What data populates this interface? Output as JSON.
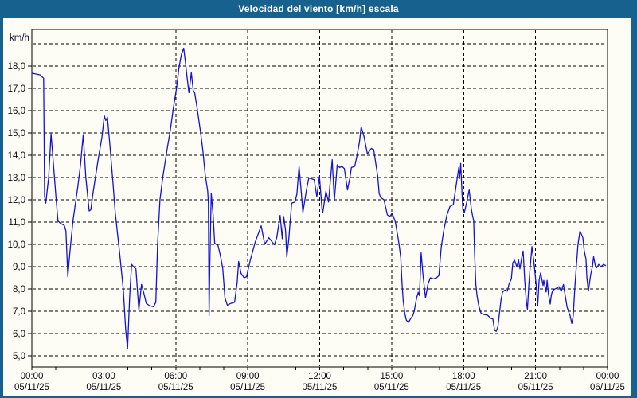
{
  "window": {
    "title": "Velocidad del viento [km/h] escala"
  },
  "colors": {
    "frame": "#17618F",
    "title_text": "#FFFFFF",
    "content_bg": "#FDFDF6",
    "line": "#1212D6",
    "grid": "#000000",
    "axis_text": "#0A0A14"
  },
  "chart_data": {
    "type": "line",
    "title": "Velocidad del viento [km/h] escala",
    "ylabel": "km/h",
    "xlabel": "",
    "x_unit": "hours",
    "xlim": [
      0,
      24
    ],
    "ylim": [
      4.5,
      19.64
    ],
    "grid": "dashed",
    "legend_position": "none",
    "y_grid_values": [
      5,
      6,
      7,
      8,
      9,
      10,
      11,
      12,
      13,
      14,
      15,
      16,
      17,
      18,
      19
    ],
    "y_ticks": [
      {
        "v": 5,
        "label": "5,0"
      },
      {
        "v": 6,
        "label": "6,0"
      },
      {
        "v": 7,
        "label": "7,0"
      },
      {
        "v": 8,
        "label": "8,0"
      },
      {
        "v": 9,
        "label": "9,0"
      },
      {
        "v": 10,
        "label": "10,0"
      },
      {
        "v": 11,
        "label": "11,0"
      },
      {
        "v": 12,
        "label": "12,0"
      },
      {
        "v": 13,
        "label": "13,0"
      },
      {
        "v": 14,
        "label": "14,0"
      },
      {
        "v": 15,
        "label": "15,0"
      },
      {
        "v": 16,
        "label": "16,0"
      },
      {
        "v": 17,
        "label": "17,0"
      },
      {
        "v": 18,
        "label": "18,0"
      }
    ],
    "x_ticks": [
      {
        "h": 0,
        "time": "00:00",
        "date": "05/11/25"
      },
      {
        "h": 3,
        "time": "03:00",
        "date": "05/11/25"
      },
      {
        "h": 6,
        "time": "06:00",
        "date": "05/11/25"
      },
      {
        "h": 9,
        "time": "09:00",
        "date": "05/11/25"
      },
      {
        "h": 12,
        "time": "12:00",
        "date": "05/11/25"
      },
      {
        "h": 15,
        "time": "15:00",
        "date": "05/11/25"
      },
      {
        "h": 18,
        "time": "18:00",
        "date": "05/11/25"
      },
      {
        "h": 21,
        "time": "21:00",
        "date": "05/11/25"
      },
      {
        "h": 24,
        "time": "00:00",
        "date": "06/11/25"
      }
    ],
    "x_minor_tick_step_hours": 1,
    "series": [
      {
        "name": "Velocidad del viento [km/h]",
        "points": [
          [
            0.0,
            17.68
          ],
          [
            0.35,
            17.6
          ],
          [
            0.44,
            17.5
          ],
          [
            0.49,
            17.45
          ],
          [
            0.53,
            12.15
          ],
          [
            0.58,
            11.85
          ],
          [
            0.7,
            13.0
          ],
          [
            0.8,
            14.95
          ],
          [
            0.9,
            13.6
          ],
          [
            1.0,
            12.2
          ],
          [
            1.09,
            11.05
          ],
          [
            1.19,
            10.95
          ],
          [
            1.35,
            10.85
          ],
          [
            1.42,
            10.6
          ],
          [
            1.47,
            9.3
          ],
          [
            1.5,
            8.55
          ],
          [
            1.59,
            9.7
          ],
          [
            1.72,
            11.1
          ],
          [
            1.92,
            12.6
          ],
          [
            2.03,
            13.6
          ],
          [
            2.14,
            14.92
          ],
          [
            2.25,
            13.0
          ],
          [
            2.39,
            11.5
          ],
          [
            2.46,
            11.55
          ],
          [
            2.55,
            12.3
          ],
          [
            2.75,
            13.7
          ],
          [
            2.92,
            14.8
          ],
          [
            3.02,
            15.77
          ],
          [
            3.08,
            15.55
          ],
          [
            3.15,
            15.7
          ],
          [
            3.25,
            14.5
          ],
          [
            3.38,
            12.8
          ],
          [
            3.48,
            11.4
          ],
          [
            3.65,
            9.7
          ],
          [
            3.81,
            8.0
          ],
          [
            3.91,
            6.2
          ],
          [
            3.99,
            5.32
          ],
          [
            4.08,
            7.7
          ],
          [
            4.16,
            9.1
          ],
          [
            4.28,
            8.95
          ],
          [
            4.34,
            8.9
          ],
          [
            4.46,
            7.05
          ],
          [
            4.57,
            8.2
          ],
          [
            4.67,
            7.8
          ],
          [
            4.77,
            7.35
          ],
          [
            4.91,
            7.25
          ],
          [
            5.07,
            7.2
          ],
          [
            5.17,
            7.4
          ],
          [
            5.24,
            10.0
          ],
          [
            5.34,
            12.0
          ],
          [
            5.47,
            13.1
          ],
          [
            5.63,
            14.2
          ],
          [
            5.77,
            15.1
          ],
          [
            5.9,
            16.1
          ],
          [
            6.03,
            17.0
          ],
          [
            6.13,
            17.9
          ],
          [
            6.23,
            18.5
          ],
          [
            6.33,
            18.8
          ],
          [
            6.4,
            18.2
          ],
          [
            6.46,
            17.6
          ],
          [
            6.55,
            16.8
          ],
          [
            6.65,
            17.7
          ],
          [
            6.73,
            16.9
          ],
          [
            6.79,
            16.8
          ],
          [
            6.89,
            16.1
          ],
          [
            7.03,
            15.05
          ],
          [
            7.13,
            14.2
          ],
          [
            7.23,
            13.1
          ],
          [
            7.33,
            12.4
          ],
          [
            7.36,
            11.9
          ],
          [
            7.39,
            6.8
          ],
          [
            7.42,
            9.0
          ],
          [
            7.48,
            12.3
          ],
          [
            7.56,
            11.3
          ],
          [
            7.62,
            10.05
          ],
          [
            7.76,
            9.95
          ],
          [
            7.86,
            9.5
          ],
          [
            7.96,
            8.9
          ],
          [
            8.05,
            7.6
          ],
          [
            8.15,
            7.27
          ],
          [
            8.29,
            7.35
          ],
          [
            8.45,
            7.4
          ],
          [
            8.56,
            8.3
          ],
          [
            8.62,
            9.23
          ],
          [
            8.72,
            8.7
          ],
          [
            8.85,
            8.5
          ],
          [
            8.95,
            8.55
          ],
          [
            9.11,
            9.3
          ],
          [
            9.31,
            10.1
          ],
          [
            9.56,
            10.83
          ],
          [
            9.71,
            10.0
          ],
          [
            9.88,
            10.3
          ],
          [
            10.11,
            9.98
          ],
          [
            10.21,
            10.3
          ],
          [
            10.35,
            11.3
          ],
          [
            10.44,
            10.25
          ],
          [
            10.5,
            11.25
          ],
          [
            10.58,
            10.6
          ],
          [
            10.63,
            9.43
          ],
          [
            10.71,
            10.2
          ],
          [
            10.83,
            11.85
          ],
          [
            10.97,
            11.9
          ],
          [
            11.05,
            12.26
          ],
          [
            11.14,
            13.5
          ],
          [
            11.21,
            12.62
          ],
          [
            11.3,
            11.43
          ],
          [
            11.44,
            12.38
          ],
          [
            11.55,
            12.98
          ],
          [
            11.77,
            12.9
          ],
          [
            11.88,
            12.14
          ],
          [
            11.99,
            13.04
          ],
          [
            12.1,
            11.55
          ],
          [
            12.13,
            11.43
          ],
          [
            12.26,
            12.38
          ],
          [
            12.37,
            11.9
          ],
          [
            12.52,
            13.8
          ],
          [
            12.61,
            11.96
          ],
          [
            12.73,
            13.57
          ],
          [
            12.83,
            13.45
          ],
          [
            12.93,
            13.5
          ],
          [
            13.03,
            13.4
          ],
          [
            13.16,
            12.44
          ],
          [
            13.26,
            13.0
          ],
          [
            13.32,
            13.45
          ],
          [
            13.46,
            13.5
          ],
          [
            13.56,
            14.0
          ],
          [
            13.66,
            14.6
          ],
          [
            13.73,
            15.27
          ],
          [
            13.85,
            14.83
          ],
          [
            13.99,
            14.06
          ],
          [
            14.15,
            14.3
          ],
          [
            14.25,
            14.25
          ],
          [
            14.32,
            13.76
          ],
          [
            14.42,
            13.05
          ],
          [
            14.48,
            12.27
          ],
          [
            14.55,
            12.1
          ],
          [
            14.68,
            12.0
          ],
          [
            14.82,
            11.32
          ],
          [
            14.92,
            11.25
          ],
          [
            15.02,
            11.4
          ],
          [
            15.15,
            11.02
          ],
          [
            15.25,
            10.4
          ],
          [
            15.31,
            10.0
          ],
          [
            15.38,
            9.4
          ],
          [
            15.43,
            8.3
          ],
          [
            15.48,
            7.5
          ],
          [
            15.55,
            6.9
          ],
          [
            15.61,
            6.6
          ],
          [
            15.7,
            6.5
          ],
          [
            15.78,
            6.65
          ],
          [
            15.88,
            6.8
          ],
          [
            15.94,
            7.0
          ],
          [
            16.04,
            7.6
          ],
          [
            16.11,
            7.85
          ],
          [
            16.16,
            7.7
          ],
          [
            16.23,
            9.62
          ],
          [
            16.31,
            8.6
          ],
          [
            16.41,
            7.6
          ],
          [
            16.51,
            8.2
          ],
          [
            16.61,
            8.5
          ],
          [
            16.74,
            8.45
          ],
          [
            16.87,
            8.5
          ],
          [
            16.97,
            8.6
          ],
          [
            17.07,
            9.89
          ],
          [
            17.17,
            10.6
          ],
          [
            17.3,
            11.31
          ],
          [
            17.43,
            11.7
          ],
          [
            17.57,
            11.78
          ],
          [
            17.67,
            12.5
          ],
          [
            17.8,
            13.45
          ],
          [
            17.83,
            12.95
          ],
          [
            17.88,
            13.63
          ],
          [
            17.93,
            12.4
          ],
          [
            17.97,
            11.55
          ],
          [
            18.03,
            11.43
          ],
          [
            18.13,
            11.9
          ],
          [
            18.23,
            12.44
          ],
          [
            18.32,
            11.6
          ],
          [
            18.37,
            11.3
          ],
          [
            18.42,
            11.07
          ],
          [
            18.46,
            9.52
          ],
          [
            18.51,
            8.21
          ],
          [
            18.56,
            7.7
          ],
          [
            18.63,
            7.26
          ],
          [
            18.73,
            6.9
          ],
          [
            18.86,
            6.85
          ],
          [
            19.0,
            6.82
          ],
          [
            19.13,
            6.68
          ],
          [
            19.22,
            6.65
          ],
          [
            19.29,
            6.15
          ],
          [
            19.36,
            6.1
          ],
          [
            19.43,
            6.3
          ],
          [
            19.49,
            6.86
          ],
          [
            19.56,
            7.5
          ],
          [
            19.62,
            7.86
          ],
          [
            19.72,
            7.95
          ],
          [
            19.82,
            7.9
          ],
          [
            19.89,
            8.21
          ],
          [
            19.99,
            8.45
          ],
          [
            20.05,
            9.17
          ],
          [
            20.12,
            9.29
          ],
          [
            20.22,
            9.0
          ],
          [
            20.29,
            9.3
          ],
          [
            20.35,
            8.9
          ],
          [
            20.42,
            9.4
          ],
          [
            20.48,
            9.7
          ],
          [
            20.55,
            8.33
          ],
          [
            20.62,
            7.38
          ],
          [
            20.66,
            7.08
          ],
          [
            20.72,
            8.2
          ],
          [
            20.78,
            9.05
          ],
          [
            20.85,
            9.9
          ],
          [
            20.92,
            9.3
          ],
          [
            20.98,
            8.7
          ],
          [
            21.05,
            7.9
          ],
          [
            21.09,
            7.24
          ],
          [
            21.15,
            8.4
          ],
          [
            21.21,
            8.72
          ],
          [
            21.31,
            8.15
          ],
          [
            21.34,
            8.38
          ],
          [
            21.44,
            7.86
          ],
          [
            21.48,
            8.38
          ],
          [
            21.54,
            7.74
          ],
          [
            21.61,
            7.32
          ],
          [
            21.66,
            7.74
          ],
          [
            21.71,
            7.92
          ],
          [
            21.81,
            8.0
          ],
          [
            21.91,
            8.05
          ],
          [
            21.98,
            8.1
          ],
          [
            22.07,
            7.9
          ],
          [
            22.16,
            8.2
          ],
          [
            22.25,
            7.6
          ],
          [
            22.31,
            7.2
          ],
          [
            22.37,
            7.0
          ],
          [
            22.44,
            6.8
          ],
          [
            22.51,
            6.45
          ],
          [
            22.57,
            6.8
          ],
          [
            22.64,
            8.1
          ],
          [
            22.7,
            9.0
          ],
          [
            22.77,
            10.0
          ],
          [
            22.85,
            10.6
          ],
          [
            22.97,
            10.3
          ],
          [
            23.03,
            9.7
          ],
          [
            23.1,
            9.35
          ],
          [
            23.14,
            8.5
          ],
          [
            23.2,
            7.9
          ],
          [
            23.3,
            8.66
          ],
          [
            23.37,
            9.0
          ],
          [
            23.42,
            9.45
          ],
          [
            23.5,
            9.0
          ],
          [
            23.55,
            8.95
          ],
          [
            23.63,
            9.1
          ],
          [
            23.73,
            9.0
          ],
          [
            23.83,
            9.1
          ],
          [
            23.92,
            9.05
          ]
        ]
      }
    ]
  }
}
